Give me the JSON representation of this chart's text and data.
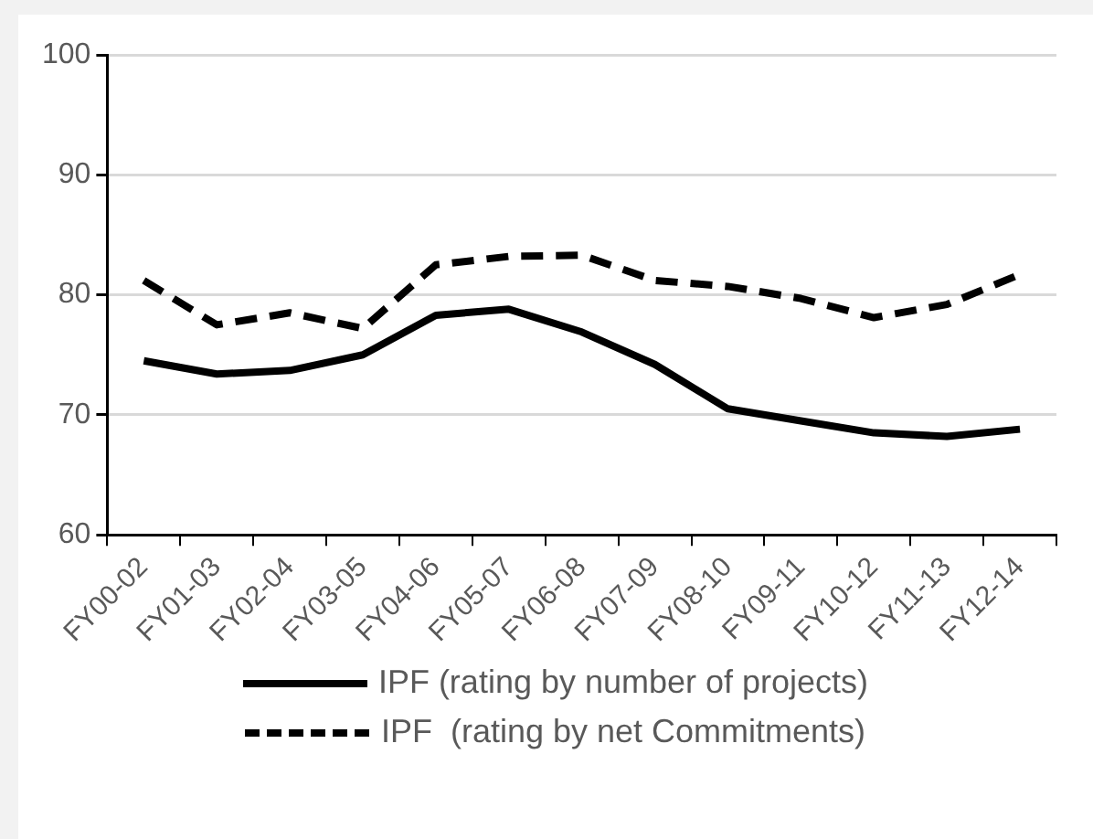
{
  "chart_data": {
    "type": "line",
    "categories": [
      "FY00-02",
      "FY01-03",
      "FY02-04",
      "FY03-05",
      "FY04-06",
      "FY05-07",
      "FY06-08",
      "FY07-09",
      "FY08-10",
      "FY09-11",
      "FY10-12",
      "FY11-13",
      "FY12-14"
    ],
    "series": [
      {
        "name": "IPF (rating by number of projects)",
        "color": "#000000",
        "line_style": "solid",
        "values": [
          74.5,
          73.4,
          73.7,
          75.0,
          78.3,
          78.8,
          76.9,
          74.2,
          70.5,
          69.5,
          68.5,
          68.2,
          68.8
        ]
      },
      {
        "name": "IPF  (rating by net Commitments)",
        "color": "#000000",
        "line_style": "dashed",
        "values": [
          81.2,
          77.5,
          78.5,
          77.2,
          82.5,
          83.2,
          83.3,
          81.2,
          80.7,
          79.7,
          78.1,
          79.2,
          81.7
        ]
      }
    ],
    "ylim": [
      60,
      100
    ],
    "yticks": [
      60,
      70,
      80,
      90,
      100
    ],
    "grid": "y",
    "legend": "bottom",
    "marker": "none"
  }
}
